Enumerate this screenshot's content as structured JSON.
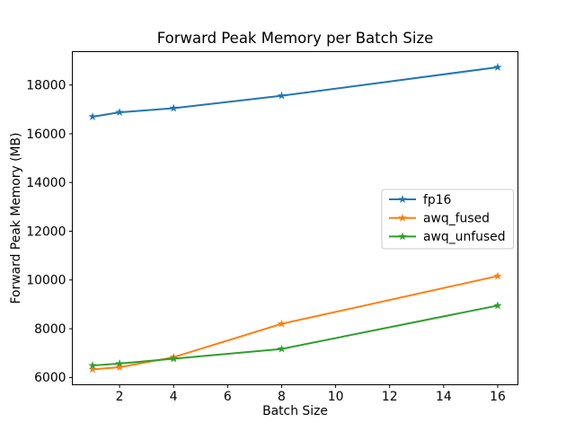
{
  "chart_data": {
    "type": "line",
    "title": "Forward Peak Memory per Batch Size",
    "xlabel": "Batch Size",
    "ylabel": "Forward Peak Memory (MB)",
    "x": [
      1,
      2,
      4,
      8,
      16
    ],
    "series": [
      {
        "name": "fp16",
        "color": "#1f77b4",
        "values": [
          16700,
          16880,
          17050,
          17560,
          18730
        ]
      },
      {
        "name": "awq_fused",
        "color": "#ff7f0e",
        "values": [
          6330,
          6420,
          6830,
          8200,
          10160
        ]
      },
      {
        "name": "awq_unfused",
        "color": "#2ca02c",
        "values": [
          6490,
          6570,
          6770,
          7170,
          8950
        ]
      }
    ],
    "marker": "star",
    "xlim": [
      0.25,
      16.75
    ],
    "ylim": [
      5700,
      19370
    ],
    "xticks": [
      2,
      4,
      6,
      8,
      10,
      12,
      14,
      16
    ],
    "yticks": [
      6000,
      8000,
      10000,
      12000,
      14000,
      16000,
      18000
    ],
    "legend": {
      "position": "center right",
      "entries": [
        "fp16",
        "awq_fused",
        "awq_unfused"
      ]
    },
    "grid": false,
    "axis_color": "#000000",
    "legend_border_color": "#cccccc",
    "background": "#ffffff"
  }
}
